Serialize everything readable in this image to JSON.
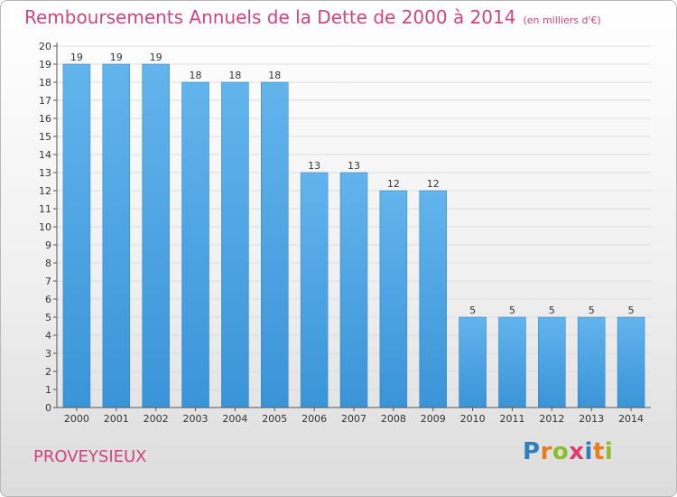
{
  "chart_data": {
    "type": "bar",
    "title": "Remboursements Annuels de la Dette de 2000 à 2014",
    "unit_label": "(en milliers d'€)",
    "categories": [
      "2000",
      "2001",
      "2002",
      "2003",
      "2004",
      "2005",
      "2006",
      "2007",
      "2008",
      "2009",
      "2010",
      "2011",
      "2012",
      "2013",
      "2014"
    ],
    "values": [
      19,
      19,
      19,
      18,
      18,
      18,
      13,
      13,
      12,
      12,
      5,
      5,
      5,
      5,
      5
    ],
    "ylim": [
      0,
      20
    ],
    "yticks": [
      0,
      1,
      2,
      3,
      4,
      5,
      6,
      7,
      8,
      9,
      10,
      11,
      12,
      13,
      14,
      15,
      16,
      17,
      18,
      19,
      20
    ],
    "grid": true,
    "bar_color": "#3a94d8",
    "bar_color_light": "#62b4ec",
    "grid_color": "#dddddd"
  },
  "commune": "PROVEYSIEUX",
  "logo": {
    "letters": [
      "P",
      "r",
      "o",
      "x",
      "i",
      "t",
      "i"
    ],
    "colors": [
      "#2f7fc0",
      "#e87d1e",
      "#8bbd2d",
      "#e03a6e",
      "#2f7fc0",
      "#e87d1e",
      "#8bbd2d"
    ]
  },
  "accent_color": "#d0457d"
}
